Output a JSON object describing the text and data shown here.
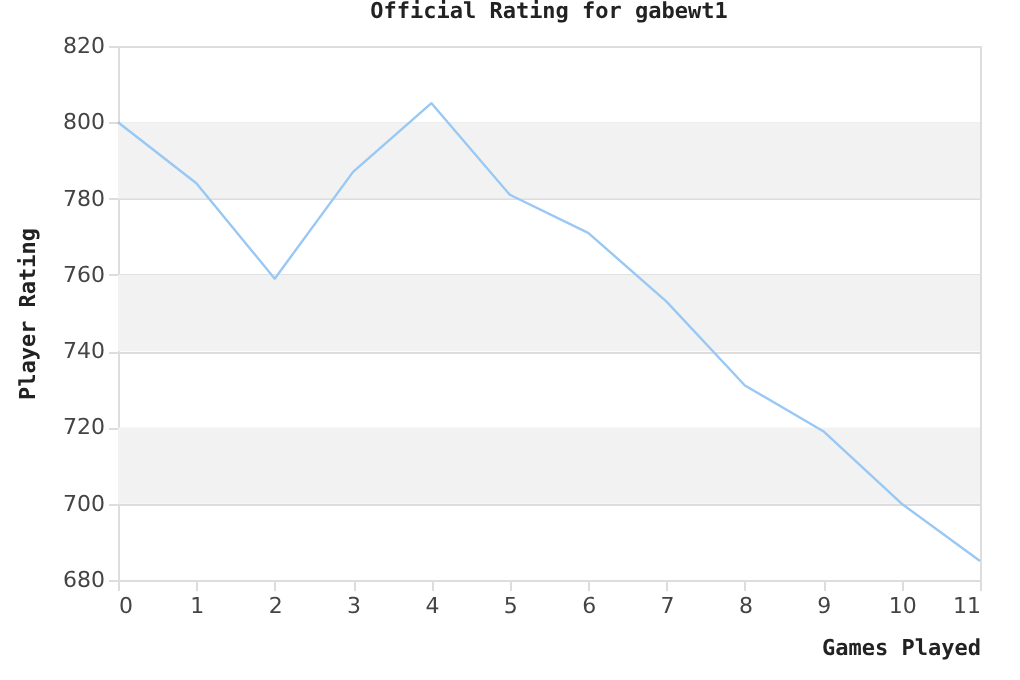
{
  "chart_data": {
    "type": "line",
    "title": "Official Rating for gabewt1",
    "xlabel": "Games Played",
    "ylabel": "Player Rating",
    "x": [
      0,
      1,
      2,
      3,
      4,
      5,
      6,
      7,
      8,
      9,
      10,
      11
    ],
    "series": [
      {
        "color": "#99c8f5",
        "values": [
          800,
          784,
          759,
          787,
          805,
          781,
          771,
          753,
          731,
          719,
          700,
          685
        ]
      }
    ],
    "xlim": [
      0,
      11
    ],
    "xticks": [
      0,
      1,
      2,
      3,
      4,
      5,
      6,
      7,
      8,
      9,
      10,
      11
    ],
    "ylim": [
      680,
      820
    ],
    "yticks": [
      680,
      700,
      720,
      740,
      760,
      780,
      800,
      820
    ],
    "bands": [
      {
        "axis": "y",
        "from": 780,
        "to": 800,
        "color": "#f2f2f2"
      },
      {
        "axis": "y",
        "from": 740,
        "to": 760,
        "color": "#f2f2f2"
      },
      {
        "axis": "y",
        "from": 700,
        "to": 720,
        "color": "#f2f2f2"
      }
    ],
    "grid": "y",
    "marker": "none",
    "line_style": "solid"
  }
}
